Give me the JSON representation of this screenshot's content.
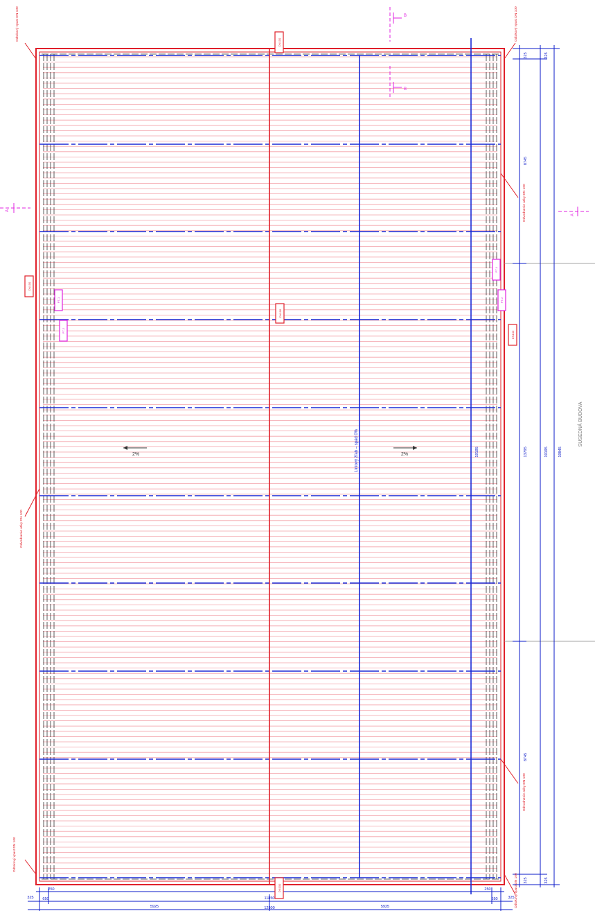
{
  "drawing": {
    "neighbor_label": "SUSEDNÁ BUDOVA",
    "slope_left": "2%",
    "slope_right": "2%",
    "ridge_note": "Líniový žľab – spád 0%",
    "colors": {
      "outline": "#e0202a",
      "hatch": "#f3a0a8",
      "structure": "#1a2ad6",
      "section": "#e020e0",
      "dims": "#0a18c8",
      "edge": "#333333"
    }
  },
  "section_markers": {
    "top_upper": "B",
    "top_lower": "B",
    "left": "A",
    "right": "A"
  },
  "right_dimensions": {
    "a1": "325",
    "a2": "8745",
    "a3": "13795",
    "a4": "8745",
    "a5": "325",
    "b1": "325",
    "b2": "19195",
    "b3": "325",
    "c1": "19845",
    "mid": "19195"
  },
  "bottom_dimensions": {
    "inner_left": "250",
    "inner_right": "250",
    "seg_small_l": "650",
    "seg_small_r": "650",
    "total_inner": "11850",
    "half_left": "5925",
    "half_right": "5925",
    "total_overall": "12500",
    "edge_l": "325",
    "edge_r": "325"
  },
  "callouts": {
    "tl": "Odtokový vpust DN 100",
    "tr": "Odtokový vpust DN 100",
    "bl": "Odtokový vpust DN 100",
    "br": "Odtokový vpust DN 100",
    "left_mid": "Odvodnenie atiky DN 100",
    "right_upper": "Odvodnenie atiky DN 100",
    "right_lower": "Odvodnenie atiky DN 100"
  },
  "tags": {
    "top_center": "DN100",
    "bottom_center": "DN100",
    "left_upper": "DN100",
    "center_mid": "DN100",
    "right_mid": "DN100",
    "mag_l1": "PT-1",
    "mag_l2": "PT-2",
    "mag_r1": "PT-1",
    "mag_r2": "PT-2"
  }
}
